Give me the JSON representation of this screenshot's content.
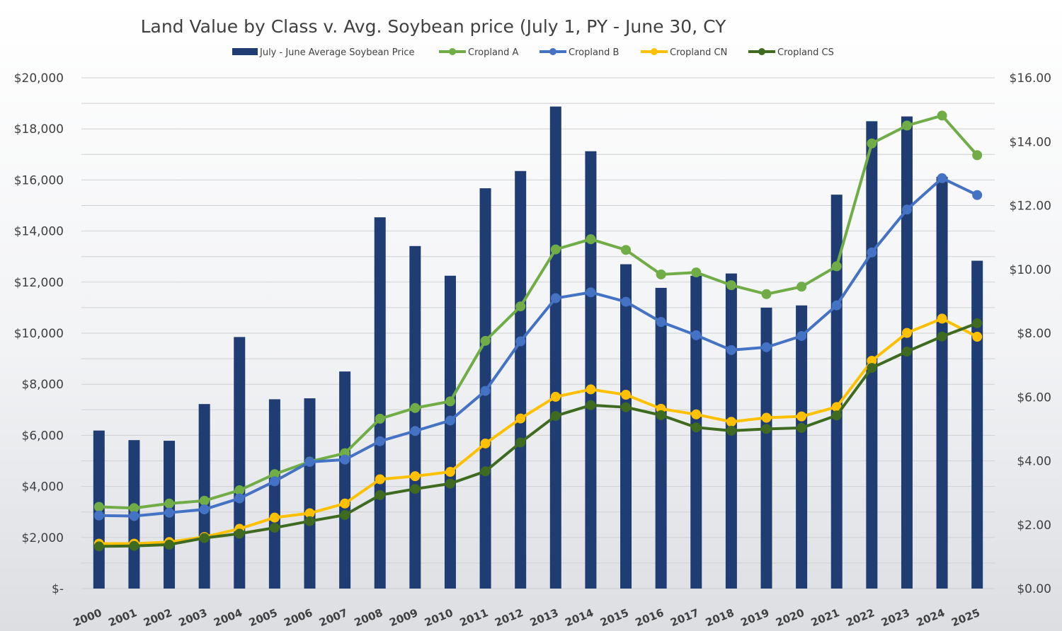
{
  "chart_data": {
    "type": "bar",
    "title": "Land Value by Class v. Avg. Soybean price (July 1, PY - June 30, CY",
    "categories": [
      "2000",
      "2001",
      "2002",
      "2003",
      "2004",
      "2005",
      "2006",
      "2007",
      "2008",
      "2009",
      "2010",
      "2011",
      "2012",
      "2013",
      "2014",
      "2015",
      "2016",
      "2017",
      "2018",
      "2019",
      "2020",
      "2021",
      "2022",
      "2023",
      "2024",
      "2025"
    ],
    "left_axis": {
      "ylim": [
        0,
        20000
      ],
      "ticks": [
        0,
        2000,
        4000,
        6000,
        8000,
        10000,
        12000,
        14000,
        16000,
        18000,
        20000
      ],
      "tick_labels": [
        "$-",
        "$2,000",
        "$4,000",
        "$6,000",
        "$8,000",
        "$10,000",
        "$12,000",
        "$14,000",
        "$16,000",
        "$18,000",
        "$20,000"
      ]
    },
    "right_axis": {
      "ylim": [
        0,
        16
      ],
      "ticks": [
        0,
        2,
        4,
        6,
        8,
        10,
        12,
        14,
        16
      ],
      "tick_labels": [
        "$0.00",
        "$2.00",
        "$4.00",
        "$6.00",
        "$8.00",
        "$10.00",
        "$12.00",
        "$14.00",
        "$16.00"
      ]
    },
    "grid": true,
    "legend_position": "top",
    "bar_series": {
      "name": "July - June Average Soybean Price",
      "axis": "right",
      "color": "#1f3c73",
      "values": [
        4.95,
        4.65,
        4.63,
        5.78,
        7.88,
        5.93,
        5.96,
        6.8,
        11.63,
        10.73,
        9.8,
        12.54,
        13.08,
        15.1,
        13.7,
        10.16,
        9.42,
        9.8,
        9.87,
        8.8,
        8.87,
        12.34,
        14.64,
        14.79,
        12.9,
        10.27
      ]
    },
    "line_series": [
      {
        "name": "Cropland A",
        "axis": "left",
        "color": "#70ad47",
        "values": [
          3200,
          3150,
          3330,
          3440,
          3850,
          4480,
          4970,
          5300,
          6650,
          7070,
          7330,
          9700,
          11050,
          13280,
          13680,
          13260,
          12300,
          12380,
          11880,
          11530,
          11820,
          12620,
          17430,
          18130,
          18520,
          16970
        ]
      },
      {
        "name": "Cropland B",
        "axis": "left",
        "color": "#4472c4",
        "values": [
          2860,
          2840,
          2970,
          3100,
          3530,
          4200,
          4960,
          5050,
          5770,
          6170,
          6580,
          7740,
          9680,
          11370,
          11600,
          11230,
          10440,
          9920,
          9340,
          9450,
          9890,
          11090,
          13160,
          14840,
          16070,
          15410
        ]
      },
      {
        "name": "Cropland CN",
        "axis": "left",
        "color": "#ffc000",
        "values": [
          1760,
          1760,
          1820,
          2020,
          2340,
          2780,
          2950,
          3330,
          4280,
          4400,
          4570,
          5680,
          6660,
          7510,
          7800,
          7590,
          7040,
          6820,
          6530,
          6690,
          6740,
          7110,
          8920,
          10010,
          10570,
          9860
        ]
      },
      {
        "name": "Cropland CS",
        "axis": "left",
        "color": "#3e6b1f",
        "values": [
          1650,
          1670,
          1720,
          1980,
          2150,
          2380,
          2640,
          2880,
          3660,
          3900,
          4110,
          4590,
          5720,
          6760,
          7180,
          7100,
          6790,
          6310,
          6180,
          6250,
          6290,
          6780,
          8640,
          9280,
          9870,
          10390
        ]
      }
    ]
  }
}
